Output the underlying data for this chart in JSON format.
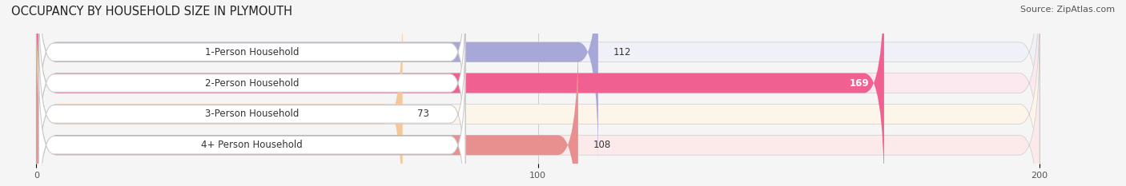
{
  "title": "OCCUPANCY BY HOUSEHOLD SIZE IN PLYMOUTH",
  "source": "Source: ZipAtlas.com",
  "categories": [
    "1-Person Household",
    "2-Person Household",
    "3-Person Household",
    "4+ Person Household"
  ],
  "values": [
    112,
    169,
    73,
    108
  ],
  "bar_colors": [
    "#a8a8d8",
    "#f06090",
    "#f5c89a",
    "#e89090"
  ],
  "label_colors": [
    "#444444",
    "#ffffff",
    "#444444",
    "#444444"
  ],
  "bar_bg_colors": [
    "#f0f0f8",
    "#fce8ef",
    "#fdf4ea",
    "#fceaea"
  ],
  "xlim": [
    -5,
    215
  ],
  "xticks": [
    0,
    100,
    200
  ],
  "figsize": [
    14.06,
    2.33
  ],
  "dpi": 100,
  "bar_height": 0.62,
  "background_color": "#f5f5f5"
}
